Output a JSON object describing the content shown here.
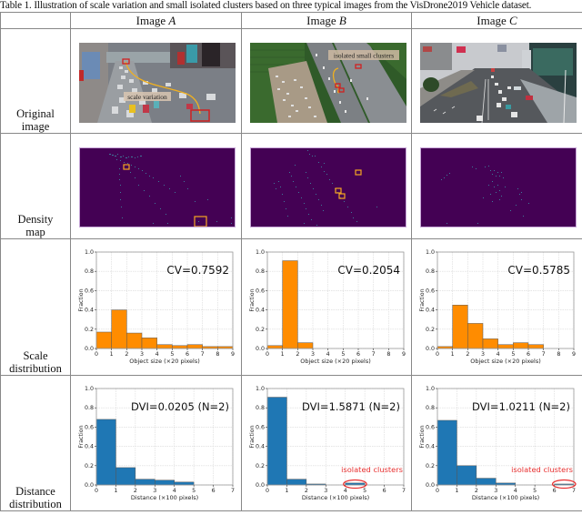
{
  "caption": "Table 1. Illustration of scale variation and small isolated clusters based on three typical images from the VisDrone2019 Vehicle dataset.",
  "header": {
    "columns": [
      {
        "prefix": "Image ",
        "letter": "A"
      },
      {
        "prefix": "Image ",
        "letter": "B"
      },
      {
        "prefix": "Image ",
        "letter": "C"
      }
    ]
  },
  "rows": [
    {
      "label_line1": "Original",
      "label_line2": "image"
    },
    {
      "label_line1": "Density",
      "label_line2": "map"
    },
    {
      "label_line1": "Scale",
      "label_line2": "distribution"
    },
    {
      "label_line1": "Distance",
      "label_line2": "distribution"
    }
  ],
  "photos": {
    "A": {
      "annotation": "scale variation"
    },
    "B": {
      "annotation": "isolated small clusters"
    },
    "C": {
      "annotation": ""
    }
  },
  "colors": {
    "orange_bar": "#ff8c00",
    "blue_bar": "#1f77b4",
    "density_bg": "#440154",
    "highlight_box": "#f5a623",
    "red_annotation": "#e83030"
  },
  "chart_data": [
    {
      "id": "scale-A",
      "type": "bar",
      "title": "",
      "annotation": "CV=0.7592",
      "xlabel": "Object size (×20 pixels)",
      "ylabel": "Fraction",
      "xlim": [
        0,
        9
      ],
      "ylim": [
        0,
        1.0
      ],
      "xticks": [
        "0",
        "1",
        "2",
        "3",
        "4",
        "5",
        "6",
        "7",
        "8",
        "9"
      ],
      "yticks": [
        "0.0",
        "0.2",
        "0.4",
        "0.6",
        "0.8",
        "1.0"
      ],
      "bins": [
        [
          0,
          1
        ],
        [
          1,
          2
        ],
        [
          2,
          3
        ],
        [
          3,
          4
        ],
        [
          4,
          5
        ],
        [
          5,
          6
        ],
        [
          6,
          7
        ],
        [
          7,
          8
        ],
        [
          8,
          9
        ]
      ],
      "values": [
        0.17,
        0.4,
        0.16,
        0.11,
        0.04,
        0.03,
        0.04,
        0.02,
        0.02
      ],
      "color": "#ff8c00",
      "grid": true
    },
    {
      "id": "scale-B",
      "type": "bar",
      "title": "",
      "annotation": "CV=0.2054",
      "xlabel": "Object size (×20 pixels)",
      "ylabel": "Fraction",
      "xlim": [
        0,
        9
      ],
      "ylim": [
        0,
        1.0
      ],
      "xticks": [
        "0",
        "1",
        "2",
        "3",
        "4",
        "5",
        "6",
        "7",
        "8",
        "9"
      ],
      "yticks": [
        "0.0",
        "0.2",
        "0.4",
        "0.6",
        "0.8",
        "1.0"
      ],
      "bins": [
        [
          0,
          1
        ],
        [
          1,
          2
        ],
        [
          2,
          3
        ]
      ],
      "values": [
        0.03,
        0.91,
        0.06
      ],
      "color": "#ff8c00",
      "grid": true
    },
    {
      "id": "scale-C",
      "type": "bar",
      "title": "",
      "annotation": "CV=0.5785",
      "xlabel": "Object size (×20 pixels)",
      "ylabel": "Fraction",
      "xlim": [
        0,
        9
      ],
      "ylim": [
        0,
        1.0
      ],
      "xticks": [
        "0",
        "1",
        "2",
        "3",
        "4",
        "5",
        "6",
        "7",
        "8",
        "9"
      ],
      "yticks": [
        "0.0",
        "0.2",
        "0.4",
        "0.6",
        "0.8",
        "1.0"
      ],
      "bins": [
        [
          0,
          1
        ],
        [
          1,
          2
        ],
        [
          2,
          3
        ],
        [
          3,
          4
        ],
        [
          4,
          5
        ],
        [
          5,
          6
        ],
        [
          6,
          7
        ]
      ],
      "values": [
        0.02,
        0.45,
        0.26,
        0.1,
        0.04,
        0.06,
        0.04
      ],
      "color": "#ff8c00",
      "grid": true
    },
    {
      "id": "distance-A",
      "type": "bar",
      "title": "",
      "annotation": "DVI=0.0205 (N=2)",
      "xlabel": "Distance (×100 pixels)",
      "ylabel": "Fraction",
      "xlim": [
        0,
        7
      ],
      "ylim": [
        0,
        1.0
      ],
      "xticks": [
        "0",
        "1",
        "2",
        "3",
        "4",
        "5",
        "6",
        "7"
      ],
      "yticks": [
        "0.0",
        "0.2",
        "0.4",
        "0.6",
        "0.8",
        "1.0"
      ],
      "bins": [
        [
          0,
          1
        ],
        [
          1,
          2
        ],
        [
          2,
          3
        ],
        [
          3,
          4
        ],
        [
          4,
          5
        ]
      ],
      "values": [
        0.68,
        0.18,
        0.06,
        0.05,
        0.03
      ],
      "color": "#1f77b4",
      "grid": true
    },
    {
      "id": "distance-B",
      "type": "bar",
      "title": "",
      "annotation": "DVI=1.5871 (N=2)",
      "highlight_label": "isolated clusters",
      "highlight_range": [
        4,
        5
      ],
      "xlabel": "Distance (×100 pixels)",
      "ylabel": "Fraction",
      "xlim": [
        0,
        7
      ],
      "ylim": [
        0,
        1.0
      ],
      "xticks": [
        "0",
        "1",
        "2",
        "3",
        "4",
        "5",
        "6",
        "7"
      ],
      "yticks": [
        "0.0",
        "0.2",
        "0.4",
        "0.6",
        "0.8",
        "1.0"
      ],
      "bins": [
        [
          0,
          1
        ],
        [
          1,
          2
        ],
        [
          2,
          3
        ],
        [
          3,
          4
        ],
        [
          4,
          5
        ]
      ],
      "values": [
        0.91,
        0.06,
        0.01,
        0.0,
        0.02
      ],
      "color": "#1f77b4",
      "grid": true
    },
    {
      "id": "distance-C",
      "type": "bar",
      "title": "",
      "annotation": "DVI=1.0211 (N=2)",
      "highlight_label": "isolated clusters",
      "highlight_range": [
        6,
        7
      ],
      "xlabel": "Distance (×100 pixels)",
      "ylabel": "Fraction",
      "xlim": [
        0,
        7
      ],
      "ylim": [
        0,
        1.0
      ],
      "xticks": [
        "0",
        "1",
        "2",
        "3",
        "4",
        "5",
        "6",
        "7"
      ],
      "yticks": [
        "0.0",
        "0.2",
        "0.4",
        "0.6",
        "0.8",
        "1.0"
      ],
      "bins": [
        [
          0,
          1
        ],
        [
          1,
          2
        ],
        [
          2,
          3
        ],
        [
          3,
          4
        ],
        [
          6,
          7
        ]
      ],
      "values": [
        0.67,
        0.2,
        0.07,
        0.02,
        0.01
      ],
      "color": "#1f77b4",
      "grid": true
    }
  ]
}
